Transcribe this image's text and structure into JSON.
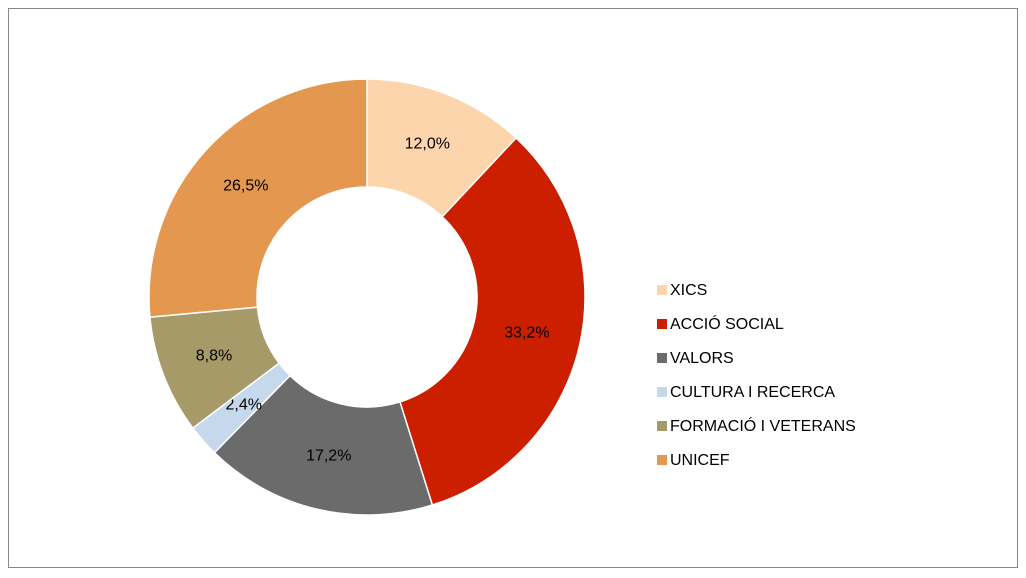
{
  "chart_data": {
    "type": "donut",
    "categories": [
      "XICS",
      "ACCIÓ SOCIAL",
      "VALORS",
      "CULTURA I RECERCA",
      "FORMACIÓ I VETERANS",
      "UNICEF"
    ],
    "values": [
      12.0,
      33.2,
      17.2,
      2.4,
      8.8,
      26.5
    ],
    "value_labels": [
      "12,0%",
      "33,2%",
      "17,2%",
      "2,4%",
      "8,8%",
      "26,5%"
    ],
    "colors": [
      "#fcd5ac",
      "#cc1f00",
      "#6b6b6b",
      "#c6d8ec",
      "#a59a68",
      "#e3974f"
    ],
    "legend": "right"
  }
}
